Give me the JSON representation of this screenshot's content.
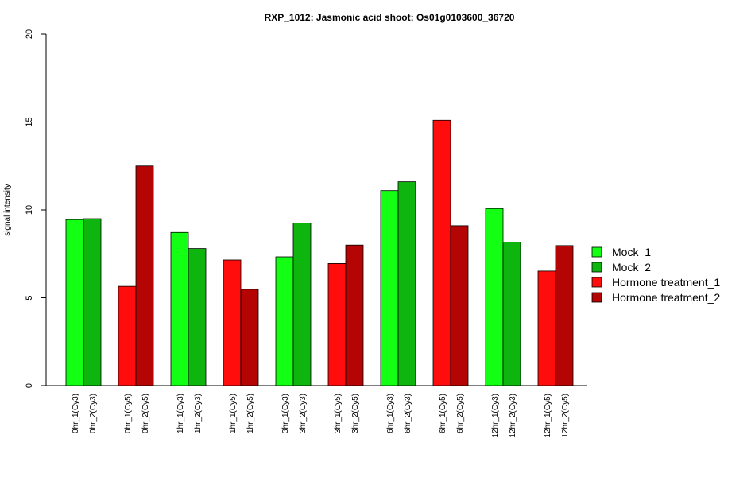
{
  "chart_data": {
    "type": "bar",
    "title": "RXP_1012: Jasmonic acid shoot; Os01g0103600_36720",
    "xlabel": "",
    "ylabel": "signal intensity",
    "ylim": [
      0,
      20
    ],
    "yticks": [
      "0",
      "5",
      "10",
      "15",
      "20"
    ],
    "legend_position": "right",
    "legend": [
      {
        "name": "Mock_1",
        "color": "#13FF13"
      },
      {
        "name": "Mock_2",
        "color": "#0FB50F"
      },
      {
        "name": "Hormone treatment_1",
        "color": "#FF0D0D"
      },
      {
        "name": "Hormone treatment_2",
        "color": "#B50404"
      }
    ],
    "groups": [
      {
        "bars": [
          {
            "label": "0hr_1(Cy3)",
            "value": 9.45,
            "series": 0
          },
          {
            "label": "0hr_2(Cy3)",
            "value": 9.5,
            "series": 1
          }
        ]
      },
      {
        "bars": [
          {
            "label": "0hr_1(Cy5)",
            "value": 5.65,
            "series": 2
          },
          {
            "label": "0hr_2(Cy5)",
            "value": 12.5,
            "series": 3
          }
        ]
      },
      {
        "bars": [
          {
            "label": "1hr_1(Cy3)",
            "value": 8.72,
            "series": 0
          },
          {
            "label": "1hr_2(Cy3)",
            "value": 7.8,
            "series": 1
          }
        ]
      },
      {
        "bars": [
          {
            "label": "1hr_1(Cy5)",
            "value": 7.15,
            "series": 2
          },
          {
            "label": "1hr_2(Cy5)",
            "value": 5.48,
            "series": 3
          }
        ]
      },
      {
        "bars": [
          {
            "label": "3hr_1(Cy3)",
            "value": 7.33,
            "series": 0
          },
          {
            "label": "3hr_2(Cy3)",
            "value": 9.25,
            "series": 1
          }
        ]
      },
      {
        "bars": [
          {
            "label": "3hr_1(Cy5)",
            "value": 6.95,
            "series": 2
          },
          {
            "label": "3hr_2(Cy5)",
            "value": 8.0,
            "series": 3
          }
        ]
      },
      {
        "bars": [
          {
            "label": "6hr_1(Cy3)",
            "value": 11.1,
            "series": 0
          },
          {
            "label": "6hr_2(Cy3)",
            "value": 11.6,
            "series": 1
          }
        ]
      },
      {
        "bars": [
          {
            "label": "6hr_1(Cy5)",
            "value": 15.1,
            "series": 2
          },
          {
            "label": "6hr_2(Cy5)",
            "value": 9.1,
            "series": 3
          }
        ]
      },
      {
        "bars": [
          {
            "label": "12hr_1(Cy3)",
            "value": 10.08,
            "series": 0
          },
          {
            "label": "12hr_2(Cy3)",
            "value": 8.17,
            "series": 1
          }
        ]
      },
      {
        "bars": [
          {
            "label": "12hr_1(Cy5)",
            "value": 6.52,
            "series": 2
          },
          {
            "label": "12hr_2(Cy5)",
            "value": 7.97,
            "series": 3
          }
        ]
      }
    ]
  }
}
